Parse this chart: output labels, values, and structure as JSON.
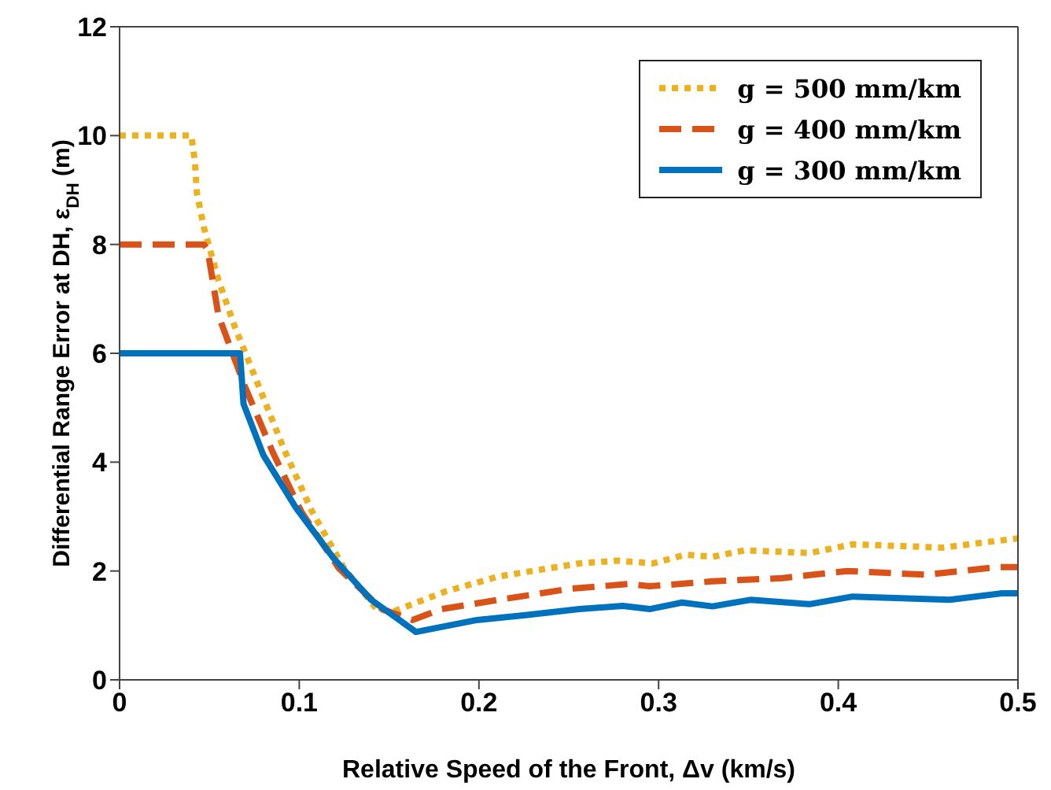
{
  "chart_data": {
    "type": "line",
    "xlabel": "Relative Speed of the Front, Δv (km/s)",
    "ylabel": "Differential Range Error at DH, ε$_{DH}$ (m)",
    "xlim": [
      0,
      0.5
    ],
    "xticks": [
      0,
      0.1,
      0.2,
      0.3,
      0.4,
      0.5
    ],
    "ylim": [
      0,
      12
    ],
    "yticks": [
      0,
      2,
      4,
      6,
      8,
      10,
      12
    ],
    "grid": false,
    "legend": "top right",
    "marker": "none",
    "series": [
      {
        "name": "g = 500 mm/km",
        "color": "#edb120",
        "line_style": "dotted",
        "x": [
          0,
          0.04,
          0.042,
          0.043,
          0.047,
          0.055,
          0.064,
          0.078,
          0.092,
          0.107,
          0.125,
          0.143,
          0.152,
          0.181,
          0.211,
          0.256,
          0.277,
          0.297,
          0.315,
          0.33,
          0.348,
          0.384,
          0.408,
          0.458,
          0.5
        ],
        "values": [
          10,
          10,
          9.5,
          8.95,
          8.3,
          7.35,
          6.5,
          5.35,
          4.2,
          3.1,
          2.05,
          1.3,
          1.25,
          1.62,
          1.9,
          2.14,
          2.19,
          2.14,
          2.3,
          2.26,
          2.38,
          2.33,
          2.49,
          2.43,
          2.6
        ]
      },
      {
        "name": "g = 400 mm/km",
        "color": "#d95319",
        "line_style": "dashed",
        "x": [
          0,
          0.047,
          0.049,
          0.055,
          0.069,
          0.085,
          0.101,
          0.122,
          0.146,
          0.163,
          0.179,
          0.211,
          0.25,
          0.283,
          0.295,
          0.33,
          0.369,
          0.405,
          0.449,
          0.488,
          0.5
        ],
        "values": [
          8,
          8,
          7.9,
          6.7,
          5.45,
          4.2,
          3.1,
          2.05,
          1.3,
          1.1,
          1.3,
          1.47,
          1.67,
          1.76,
          1.72,
          1.81,
          1.87,
          2.0,
          1.93,
          2.07,
          2.07
        ]
      },
      {
        "name": "g = 300 mm/km",
        "color": "#0072bd",
        "line_style": "solid",
        "x": [
          0,
          0.067,
          0.069,
          0.08,
          0.098,
          0.119,
          0.14,
          0.165,
          0.199,
          0.226,
          0.256,
          0.28,
          0.295,
          0.313,
          0.33,
          0.351,
          0.384,
          0.408,
          0.462,
          0.491,
          0.5
        ],
        "values": [
          6,
          6,
          5.07,
          4.13,
          3.17,
          2.24,
          1.47,
          0.88,
          1.1,
          1.19,
          1.3,
          1.36,
          1.3,
          1.42,
          1.35,
          1.47,
          1.39,
          1.53,
          1.47,
          1.59,
          1.59
        ]
      }
    ]
  }
}
